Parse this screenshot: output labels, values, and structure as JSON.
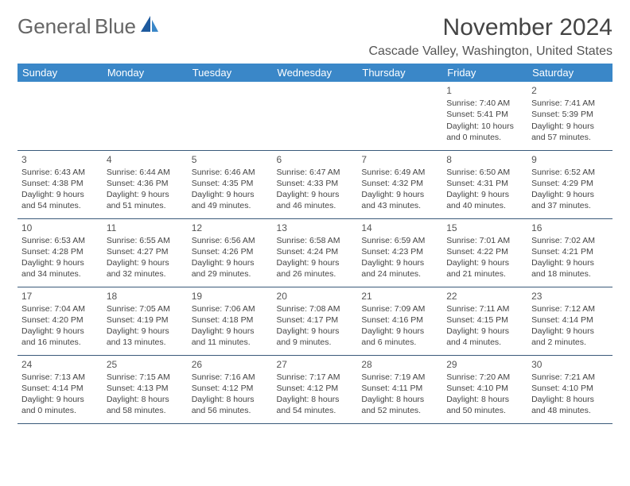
{
  "brand": {
    "line1": "General",
    "line2": "Blue"
  },
  "title": "November 2024",
  "location": "Cascade Valley, Washington, United States",
  "header_color": "#3a87c8",
  "border_color": "#3a5a7a",
  "columns": [
    "Sunday",
    "Monday",
    "Tuesday",
    "Wednesday",
    "Thursday",
    "Friday",
    "Saturday"
  ],
  "first_weekday_index": 5,
  "days": [
    {
      "n": 1,
      "sunrise": "7:40 AM",
      "sunset": "5:41 PM",
      "dl": "10 hours and 0 minutes."
    },
    {
      "n": 2,
      "sunrise": "7:41 AM",
      "sunset": "5:39 PM",
      "dl": "9 hours and 57 minutes."
    },
    {
      "n": 3,
      "sunrise": "6:43 AM",
      "sunset": "4:38 PM",
      "dl": "9 hours and 54 minutes."
    },
    {
      "n": 4,
      "sunrise": "6:44 AM",
      "sunset": "4:36 PM",
      "dl": "9 hours and 51 minutes."
    },
    {
      "n": 5,
      "sunrise": "6:46 AM",
      "sunset": "4:35 PM",
      "dl": "9 hours and 49 minutes."
    },
    {
      "n": 6,
      "sunrise": "6:47 AM",
      "sunset": "4:33 PM",
      "dl": "9 hours and 46 minutes."
    },
    {
      "n": 7,
      "sunrise": "6:49 AM",
      "sunset": "4:32 PM",
      "dl": "9 hours and 43 minutes."
    },
    {
      "n": 8,
      "sunrise": "6:50 AM",
      "sunset": "4:31 PM",
      "dl": "9 hours and 40 minutes."
    },
    {
      "n": 9,
      "sunrise": "6:52 AM",
      "sunset": "4:29 PM",
      "dl": "9 hours and 37 minutes."
    },
    {
      "n": 10,
      "sunrise": "6:53 AM",
      "sunset": "4:28 PM",
      "dl": "9 hours and 34 minutes."
    },
    {
      "n": 11,
      "sunrise": "6:55 AM",
      "sunset": "4:27 PM",
      "dl": "9 hours and 32 minutes."
    },
    {
      "n": 12,
      "sunrise": "6:56 AM",
      "sunset": "4:26 PM",
      "dl": "9 hours and 29 minutes."
    },
    {
      "n": 13,
      "sunrise": "6:58 AM",
      "sunset": "4:24 PM",
      "dl": "9 hours and 26 minutes."
    },
    {
      "n": 14,
      "sunrise": "6:59 AM",
      "sunset": "4:23 PM",
      "dl": "9 hours and 24 minutes."
    },
    {
      "n": 15,
      "sunrise": "7:01 AM",
      "sunset": "4:22 PM",
      "dl": "9 hours and 21 minutes."
    },
    {
      "n": 16,
      "sunrise": "7:02 AM",
      "sunset": "4:21 PM",
      "dl": "9 hours and 18 minutes."
    },
    {
      "n": 17,
      "sunrise": "7:04 AM",
      "sunset": "4:20 PM",
      "dl": "9 hours and 16 minutes."
    },
    {
      "n": 18,
      "sunrise": "7:05 AM",
      "sunset": "4:19 PM",
      "dl": "9 hours and 13 minutes."
    },
    {
      "n": 19,
      "sunrise": "7:06 AM",
      "sunset": "4:18 PM",
      "dl": "9 hours and 11 minutes."
    },
    {
      "n": 20,
      "sunrise": "7:08 AM",
      "sunset": "4:17 PM",
      "dl": "9 hours and 9 minutes."
    },
    {
      "n": 21,
      "sunrise": "7:09 AM",
      "sunset": "4:16 PM",
      "dl": "9 hours and 6 minutes."
    },
    {
      "n": 22,
      "sunrise": "7:11 AM",
      "sunset": "4:15 PM",
      "dl": "9 hours and 4 minutes."
    },
    {
      "n": 23,
      "sunrise": "7:12 AM",
      "sunset": "4:14 PM",
      "dl": "9 hours and 2 minutes."
    },
    {
      "n": 24,
      "sunrise": "7:13 AM",
      "sunset": "4:14 PM",
      "dl": "9 hours and 0 minutes."
    },
    {
      "n": 25,
      "sunrise": "7:15 AM",
      "sunset": "4:13 PM",
      "dl": "8 hours and 58 minutes."
    },
    {
      "n": 26,
      "sunrise": "7:16 AM",
      "sunset": "4:12 PM",
      "dl": "8 hours and 56 minutes."
    },
    {
      "n": 27,
      "sunrise": "7:17 AM",
      "sunset": "4:12 PM",
      "dl": "8 hours and 54 minutes."
    },
    {
      "n": 28,
      "sunrise": "7:19 AM",
      "sunset": "4:11 PM",
      "dl": "8 hours and 52 minutes."
    },
    {
      "n": 29,
      "sunrise": "7:20 AM",
      "sunset": "4:10 PM",
      "dl": "8 hours and 50 minutes."
    },
    {
      "n": 30,
      "sunrise": "7:21 AM",
      "sunset": "4:10 PM",
      "dl": "8 hours and 48 minutes."
    }
  ]
}
